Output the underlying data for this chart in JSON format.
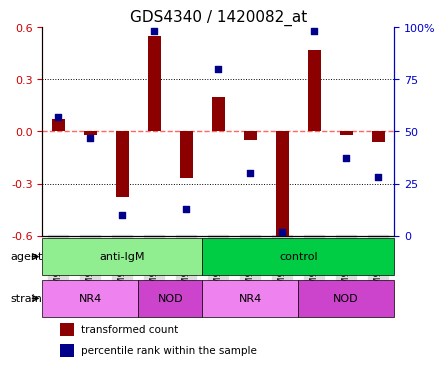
{
  "title": "GDS4340 / 1420082_at",
  "samples": [
    "GSM915690",
    "GSM915691",
    "GSM915692",
    "GSM915685",
    "GSM915686",
    "GSM915687",
    "GSM915688",
    "GSM915689",
    "GSM915682",
    "GSM915683",
    "GSM915684"
  ],
  "transformed_count": [
    0.07,
    -0.02,
    -0.38,
    0.55,
    -0.27,
    0.2,
    -0.05,
    -0.6,
    0.47,
    -0.02,
    -0.06
  ],
  "percentile_rank": [
    57,
    47,
    10,
    98,
    13,
    80,
    30,
    2,
    98,
    37,
    28
  ],
  "agent_groups": [
    {
      "label": "anti-IgM",
      "start": 0,
      "end": 5,
      "color": "#90EE90"
    },
    {
      "label": "control",
      "start": 5,
      "end": 11,
      "color": "#00CC44"
    }
  ],
  "strain_groups": [
    {
      "label": "NR4",
      "start": 0,
      "end": 3,
      "color": "#EE82EE"
    },
    {
      "label": "NOD",
      "start": 3,
      "end": 5,
      "color": "#CC44CC"
    },
    {
      "label": "NR4",
      "start": 5,
      "end": 8,
      "color": "#EE82EE"
    },
    {
      "label": "NOD",
      "start": 8,
      "end": 11,
      "color": "#CC44CC"
    }
  ],
  "ylim": [
    -0.6,
    0.6
  ],
  "yticks": [
    -0.6,
    -0.3,
    0.0,
    0.3,
    0.6
  ],
  "y2lim": [
    0,
    100
  ],
  "y2ticks": [
    0,
    25,
    50,
    75,
    100
  ],
  "y2ticklabels": [
    "0",
    "25",
    "50",
    "75",
    "100%"
  ],
  "bar_color": "#8B0000",
  "dot_color": "#00008B",
  "ref_line_color": "#FF6666",
  "grid_color": "black",
  "label_agent": "agent",
  "label_strain": "strain",
  "legend_bar": "transformed count",
  "legend_dot": "percentile rank within the sample",
  "tick_label_color_left": "#CC0000",
  "tick_label_color_right": "#0000CC",
  "background_plot": "white",
  "background_tick": "#DDDDDD"
}
